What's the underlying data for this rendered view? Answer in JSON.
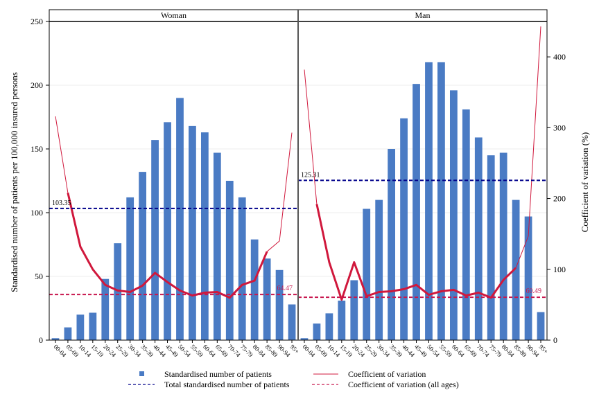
{
  "chart_data": {
    "type": "bar",
    "panels": [
      "Woman",
      "Man"
    ],
    "categories": [
      "00-04",
      "05-09",
      "10-14",
      "15-19",
      "20-24",
      "25-29",
      "30-34",
      "35-39",
      "40-44",
      "45-49",
      "50-54",
      "55-59",
      "60-64",
      "65-69",
      "70-74",
      "75-79",
      "80-84",
      "85-89",
      "90-94",
      "95+"
    ],
    "ylabel": "Standardised number of patients per 100,000 insured persons",
    "y2label": "Coefficient of variation (%)",
    "ylim": [
      0,
      250
    ],
    "y2lim": [
      0,
      450
    ],
    "yticks": [
      0,
      50,
      100,
      150,
      200,
      250
    ],
    "y2ticks": [
      0,
      100,
      200,
      300,
      400
    ],
    "grid": true,
    "legend_position": "bottom",
    "series": [
      {
        "name": "Standardised number of patients",
        "axis": "left",
        "color": "#4a7bc4",
        "values": {
          "Woman": [
            1.5,
            10,
            20,
            21.5,
            48,
            76,
            112,
            132,
            157,
            171,
            190,
            168,
            163,
            147,
            125,
            112,
            79,
            64,
            55,
            28
          ],
          "Man": [
            1.5,
            13,
            21,
            31,
            47,
            103,
            110,
            150,
            174,
            201,
            218,
            218,
            196,
            181,
            159,
            145,
            147,
            110,
            97,
            22
          ]
        }
      },
      {
        "name": "Coefficient of variation",
        "axis": "right",
        "color": "#d0183c",
        "values": {
          "Woman": [
            316,
            208,
            132,
            100,
            78,
            70,
            68,
            77,
            95,
            82,
            70,
            63,
            67,
            68,
            60,
            78,
            84,
            125,
            140,
            293
          ],
          "Man": [
            382,
            192,
            110,
            57,
            110,
            62,
            68,
            69,
            72,
            78,
            64,
            69,
            71,
            63,
            67,
            60,
            85,
            102,
            147,
            443
          ]
        }
      }
    ],
    "reference_lines": [
      {
        "name": "Total standardised number of patients",
        "axis": "left",
        "color": "#00008b",
        "values": {
          "Woman": 103.35,
          "Man": 125.31
        },
        "labels": {
          "Woman": "103.35",
          "Man": "125.31"
        }
      },
      {
        "name": "Coefficient of variation (all ages)",
        "axis": "right",
        "color": "#c8174e",
        "values": {
          "Woman": 64.47,
          "Man": 60.49
        },
        "labels": {
          "Woman": "64.47",
          "Man": "60.49"
        }
      }
    ],
    "legend": [
      "Standardised number of patients",
      "Coefficient of variation",
      "Total standardised number of patients",
      "Coefficient of variation (all ages)"
    ]
  }
}
